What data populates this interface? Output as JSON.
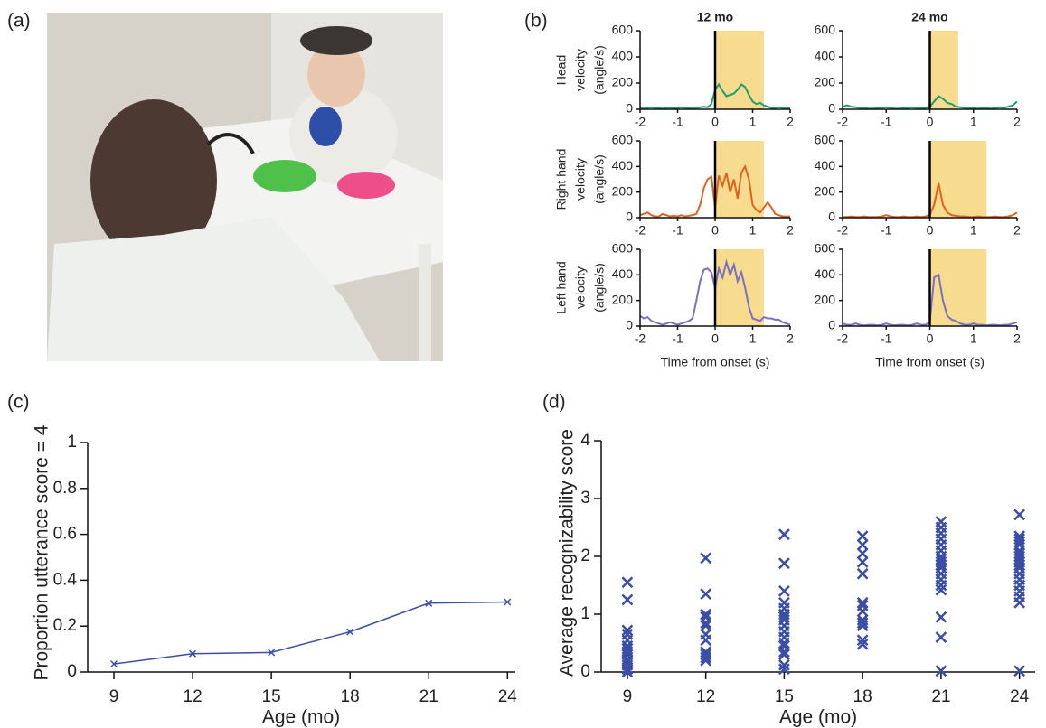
{
  "chart_data": [
    {
      "type": "image",
      "label": "(a)"
    },
    {
      "type": "line-grid",
      "label": "(b)",
      "columns": [
        "12 mo",
        "24 mo"
      ],
      "ylabels": [
        [
          "Head",
          "velocity",
          "(angle/s)"
        ],
        [
          "Right hand",
          "velocity",
          "(angle/s)"
        ],
        [
          "Left hand",
          "velocity",
          "(angle/s)"
        ]
      ],
      "xlabel": "Time from onset (s)",
      "x": [
        -2,
        -1.9,
        -1.8,
        -1.7,
        -1.6,
        -1.5,
        -1.4,
        -1.3,
        -1.2,
        -1.1,
        -1,
        -0.9,
        -0.8,
        -0.7,
        -0.6,
        -0.5,
        -0.4,
        -0.3,
        -0.2,
        -0.1,
        0,
        0.1,
        0.2,
        0.3,
        0.4,
        0.5,
        0.6,
        0.7,
        0.8,
        0.9,
        1,
        1.1,
        1.2,
        1.3,
        1.4,
        1.5,
        1.6,
        1.7,
        1.8,
        1.9,
        2
      ],
      "xlim": [
        -2,
        2
      ],
      "xticks": [
        -2,
        -1,
        0,
        1,
        2
      ],
      "ylim": [
        0,
        600
      ],
      "yticks": [
        0,
        200,
        400,
        600
      ],
      "onset": 0,
      "highlight_color": "#f7dc8f",
      "series": [
        {
          "color": "#1f9e6c",
          "highlight": [
            0,
            1.3
          ],
          "values": [
            10,
            5,
            10,
            15,
            10,
            8,
            5,
            10,
            12,
            8,
            10,
            15,
            10,
            8,
            5,
            10,
            15,
            20,
            15,
            40,
            150,
            190,
            140,
            100,
            110,
            120,
            150,
            190,
            170,
            110,
            60,
            40,
            50,
            30,
            20,
            10,
            10,
            15,
            10,
            10,
            10
          ]
        },
        {
          "color": "#1f9e6c",
          "highlight": [
            0,
            0.65
          ],
          "values": [
            20,
            30,
            20,
            15,
            10,
            10,
            5,
            5,
            10,
            10,
            15,
            10,
            5,
            5,
            10,
            10,
            15,
            10,
            10,
            10,
            20,
            60,
            100,
            80,
            50,
            40,
            20,
            15,
            10,
            10,
            10,
            5,
            10,
            10,
            5,
            10,
            15,
            10,
            20,
            30,
            60
          ]
        },
        {
          "color": "#e0621e",
          "highlight": [
            0,
            1.3
          ],
          "values": [
            20,
            30,
            40,
            20,
            10,
            10,
            30,
            20,
            10,
            15,
            10,
            20,
            10,
            15,
            20,
            30,
            100,
            230,
            300,
            320,
            80,
            330,
            250,
            350,
            200,
            300,
            150,
            350,
            400,
            300,
            100,
            60,
            40,
            80,
            120,
            80,
            30,
            20,
            10,
            10,
            10
          ]
        },
        {
          "color": "#e0621e",
          "highlight": [
            0,
            1.3
          ],
          "values": [
            5,
            5,
            10,
            5,
            5,
            10,
            5,
            5,
            5,
            10,
            20,
            10,
            5,
            5,
            10,
            5,
            5,
            10,
            5,
            10,
            20,
            100,
            270,
            100,
            40,
            20,
            15,
            10,
            10,
            5,
            5,
            10,
            5,
            5,
            5,
            10,
            5,
            5,
            10,
            20,
            40
          ]
        },
        {
          "color": "#7a70c2",
          "highlight": [
            0,
            1.3
          ],
          "values": [
            80,
            60,
            70,
            40,
            30,
            20,
            10,
            20,
            30,
            20,
            10,
            20,
            30,
            40,
            60,
            200,
            350,
            440,
            450,
            420,
            300,
            450,
            380,
            500,
            400,
            480,
            350,
            420,
            300,
            150,
            60,
            50,
            40,
            70,
            60,
            60,
            50,
            50,
            30,
            20,
            10
          ]
        },
        {
          "color": "#7a70c2",
          "highlight": [
            0,
            1.3
          ],
          "values": [
            20,
            10,
            10,
            20,
            10,
            5,
            10,
            10,
            5,
            10,
            20,
            10,
            5,
            10,
            10,
            5,
            10,
            20,
            10,
            10,
            30,
            380,
            400,
            200,
            80,
            50,
            40,
            20,
            10,
            10,
            20,
            10,
            10,
            5,
            10,
            10,
            5,
            10,
            10,
            20,
            30
          ]
        }
      ]
    },
    {
      "type": "line",
      "label": "(c)",
      "xlabel": "Age (mo)",
      "ylabel": "Proportion utterance score = 4",
      "x": [
        9,
        12,
        15,
        18,
        21,
        24
      ],
      "values": [
        0.035,
        0.08,
        0.085,
        0.175,
        0.3,
        0.305
      ],
      "color": "#3b4ea6",
      "xlim": [
        8,
        24.3
      ],
      "xticks": [
        9,
        12,
        15,
        18,
        21,
        24
      ],
      "ylim": [
        0,
        1
      ],
      "yticks": [
        0,
        0.2,
        0.4,
        0.6,
        0.8,
        1
      ]
    },
    {
      "type": "scatter",
      "label": "(d)",
      "xlabel": "Age (mo)",
      "ylabel": "Average recognizability score",
      "color": "#3b4ea6",
      "x": [
        9,
        9,
        9,
        9,
        9,
        9,
        9,
        9,
        9,
        9,
        9,
        9,
        9,
        9,
        12,
        12,
        12,
        12,
        12,
        12,
        12,
        12,
        12,
        12,
        12,
        12,
        15,
        15,
        15,
        15,
        15,
        15,
        15,
        15,
        15,
        15,
        15,
        15,
        15,
        15,
        15,
        15,
        15,
        18,
        18,
        18,
        18,
        18,
        18,
        18,
        18,
        18,
        18,
        18,
        18,
        18,
        21,
        21,
        21,
        21,
        21,
        21,
        21,
        21,
        21,
        21,
        21,
        21,
        21,
        21,
        21,
        21,
        21,
        21,
        24,
        24,
        24,
        24,
        24,
        24,
        24,
        24,
        24,
        24,
        24,
        24,
        24,
        24,
        24,
        24,
        24,
        24,
        24
      ],
      "values": [
        1.55,
        1.25,
        0.72,
        0.65,
        0.55,
        0.45,
        0.4,
        0.35,
        0.3,
        0.22,
        0.18,
        0.12,
        0.05,
        0,
        1.97,
        1.35,
        1.0,
        0.95,
        0.85,
        0.8,
        0.65,
        0.55,
        0.35,
        0.3,
        0.25,
        0.2,
        2.38,
        1.88,
        1.4,
        1.2,
        1.1,
        1.0,
        0.95,
        0.9,
        0.8,
        0.7,
        0.6,
        0.5,
        0.45,
        0.35,
        0.3,
        0.12,
        0.05,
        2.35,
        2.2,
        2.05,
        1.9,
        1.7,
        1.2,
        1.15,
        1.05,
        0.9,
        0.85,
        0.8,
        0.55,
        0.48,
        2.6,
        2.5,
        2.4,
        2.3,
        2.2,
        2.1,
        2.0,
        1.95,
        1.9,
        1.85,
        1.8,
        1.7,
        1.6,
        1.5,
        1.42,
        0.95,
        0.6,
        0.02,
        2.72,
        2.35,
        2.3,
        2.25,
        2.2,
        2.1,
        2.05,
        2.0,
        1.95,
        1.9,
        1.85,
        1.8,
        1.7,
        1.6,
        1.5,
        1.4,
        1.3,
        1.2,
        0.02
      ],
      "xlim": [
        8,
        24.6
      ],
      "xticks": [
        9,
        12,
        15,
        18,
        21,
        24
      ],
      "ylim": [
        0,
        4
      ],
      "yticks": [
        0,
        1,
        2,
        3,
        4
      ]
    }
  ]
}
